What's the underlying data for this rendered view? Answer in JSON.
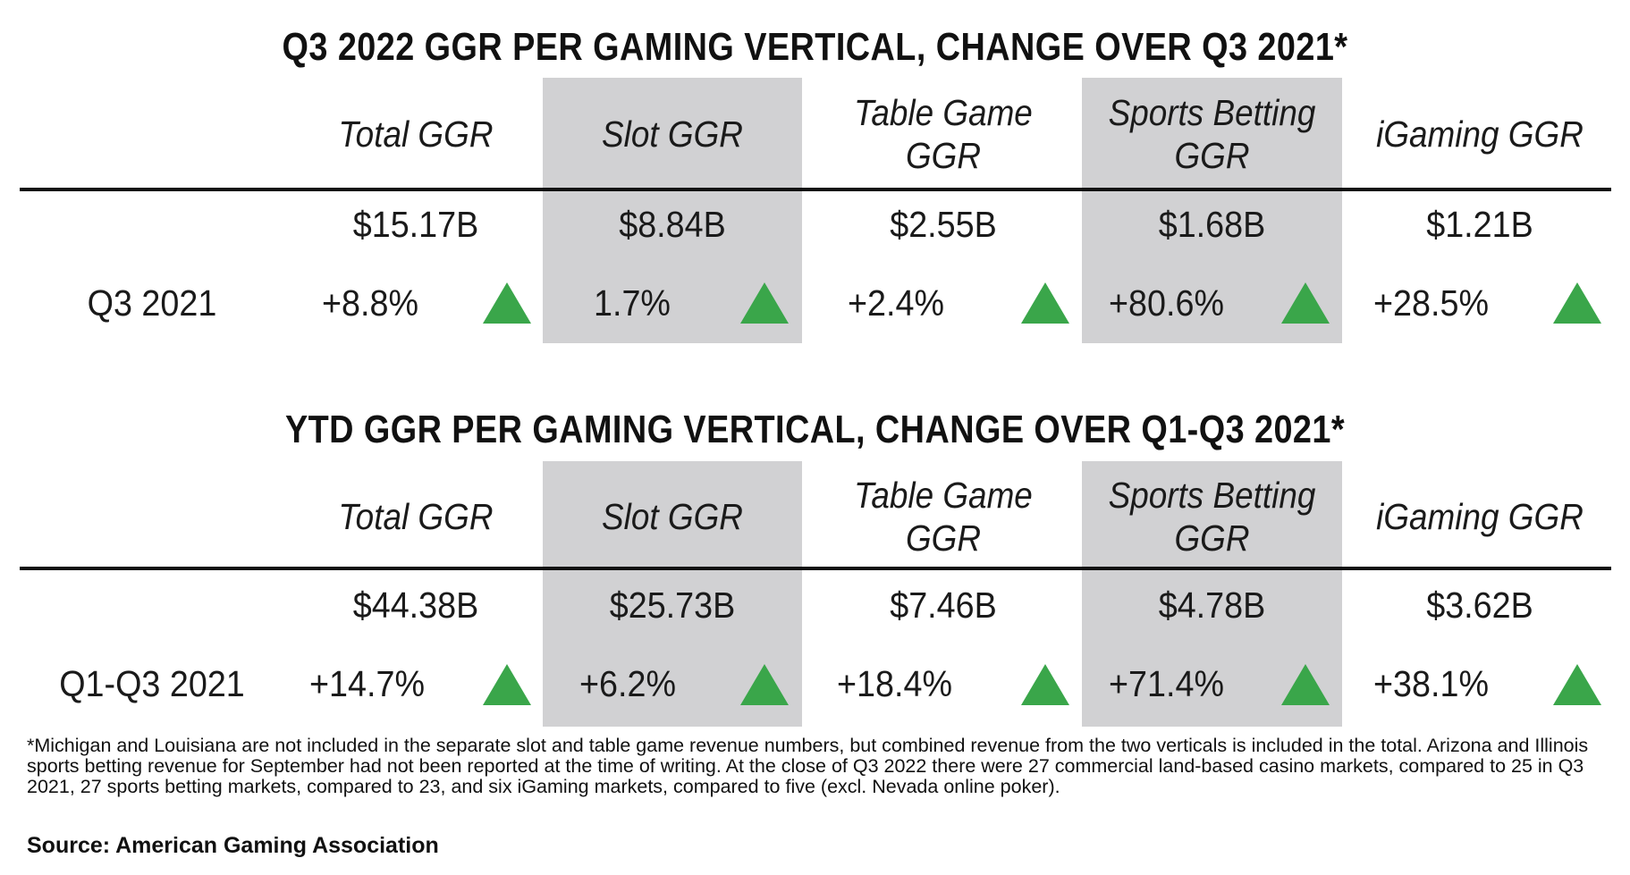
{
  "colors": {
    "shade": "#d1d1d3",
    "arrow_up": "#3aa64a",
    "rule": "#111111"
  },
  "columns": [
    "Total GGR",
    "Slot GGR",
    "Table Game GGR",
    "Sports Betting GGR",
    "iGaming GGR"
  ],
  "sections": [
    {
      "title": "Q3 2022 GGR PER GAMING VERTICAL, CHANGE OVER Q3 2021*",
      "headers": {
        "total": "Total GGR",
        "slot": "Slot GGR",
        "table_line1": "Table Game",
        "table_line2": "GGR",
        "sports_line1": "Sports Betting",
        "sports_line2": "GGR",
        "igaming": "iGaming GGR"
      },
      "values": {
        "total": "$15.17B",
        "slot": "$8.84B",
        "table": "$2.55B",
        "sports": "$1.68B",
        "igaming": "$1.21B"
      },
      "change_label": "Q3 2021",
      "changes": {
        "total": "+8.8%",
        "slot": "1.7%",
        "table": "+2.4%",
        "sports": "+80.6%",
        "igaming": "+28.5%"
      },
      "directions": {
        "total": "up-arrow-icon",
        "slot": "up-arrow-icon",
        "table": "up-arrow-icon",
        "sports": "up-arrow-icon",
        "igaming": "up-arrow-icon"
      }
    },
    {
      "title": "YTD GGR PER GAMING VERTICAL, CHANGE OVER Q1-Q3 2021*",
      "headers": {
        "total": "Total GGR",
        "slot": "Slot GGR",
        "table_line1": "Table Game",
        "table_line2": "GGR",
        "sports_line1": "Sports Betting",
        "sports_line2": "GGR",
        "igaming": "iGaming GGR"
      },
      "values": {
        "total": "$44.38B",
        "slot": "$25.73B",
        "table": "$7.46B",
        "sports": "$4.78B",
        "igaming": "$3.62B"
      },
      "change_label": "Q1-Q3 2021",
      "changes": {
        "total": "+14.7%",
        "slot": "+6.2%",
        "table": "+18.4%",
        "sports": "+71.4%",
        "igaming": "+38.1%"
      },
      "directions": {
        "total": "up-arrow-icon",
        "slot": "up-arrow-icon",
        "table": "up-arrow-icon",
        "sports": "up-arrow-icon",
        "igaming": "up-arrow-icon"
      }
    }
  ],
  "footnote": "*Michigan and Louisiana are not included in the separate slot and table game revenue numbers, but combined revenue from the two verticals is included in the total. Arizona and Illinois sports betting revenue for September had not been reported at the time of writing. At the close of Q3 2022 there were 27 commercial land-based casino markets, compared to 25 in Q3 2021, 27 sports betting markets, compared to 23, and six iGaming markets, compared to five (excl. Nevada online poker).",
  "source": "Source: American Gaming Association"
}
